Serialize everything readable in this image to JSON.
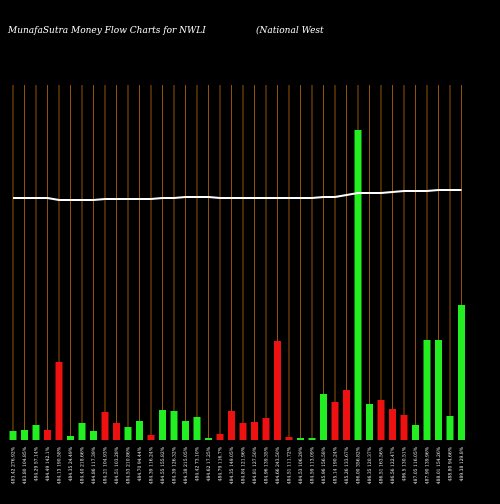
{
  "chart_data": {
    "type": "bar",
    "title": "MunafaSutra  Money Flow  Charts for NWLI",
    "subtitle": "(National West",
    "categories": [
      "483.42 276.92%",
      "483.80 104.85%",
      "484.29 57.14%",
      "484.49 142.1%",
      "484.13 190.58%",
      "484.35 24.49%",
      "484.40 218.66%",
      "484.86 117.39%",
      "484.21 104.93%",
      "484.51 103.28%",
      "484.53 210.86%",
      "484.70 94.44%",
      "484.39 116.24%",
      "484.55 155.82%",
      "484.39 126.32%",
      "484.38 215.05%",
      "484.42 73.10%",
      "484.62 17.25%",
      "484.79 116.7%",
      "484.35 149.05%",
      "484.84 121.96%",
      "484.81 127.50%",
      "484.96 139.35%",
      "484.66 243.50%",
      "484.51 111.72%",
      "484.53 106.29%",
      "484.59 113.09%",
      "485.96 156.58%",
      "485.14 190.24%",
      "485.26 133.67%",
      "486.00 356.82%",
      "486.35 120.37%",
      "486.51 163.56%",
      "486.56 122.47%",
      "486.5 130.51%",
      "487.05 116.05%",
      "487.90 139.96%",
      "488.01 154.26%",
      "488.80 94.66%",
      "489.38 129.8%"
    ],
    "series": [
      {
        "name": "money flow",
        "values": [
          9,
          10,
          15,
          10,
          78,
          4,
          17,
          9,
          28,
          17,
          13,
          19,
          5,
          30,
          29,
          19,
          23,
          2,
          6,
          29,
          17,
          18,
          22,
          99,
          3,
          2,
          2,
          46,
          38,
          50,
          310,
          36,
          40,
          31,
          25,
          15,
          100,
          100,
          24,
          135
        ],
        "colors": [
          "#22ee22",
          "#22ee22",
          "#22ee22",
          "#ee1111",
          "#ee1111",
          "#22ee22",
          "#22ee22",
          "#22ee22",
          "#ee1111",
          "#ee1111",
          "#22ee22",
          "#22ee22",
          "#ee1111",
          "#22ee22",
          "#22ee22",
          "#22ee22",
          "#22ee22",
          "#22ee22",
          "#ee1111",
          "#ee1111",
          "#ee1111",
          "#ee1111",
          "#ee1111",
          "#ee1111",
          "#ee1111",
          "#22ee22",
          "#22ee22",
          "#22ee22",
          "#ee1111",
          "#ee1111",
          "#22ee22",
          "#22ee22",
          "#ee1111",
          "#ee1111",
          "#ee1111",
          "#22ee22",
          "#22ee22",
          "#22ee22",
          "#22ee22",
          "#22ee22"
        ]
      },
      {
        "name": "price",
        "type": "line",
        "color": "#ffffff",
        "values": [
          242,
          242,
          242,
          242,
          240,
          240,
          240,
          240,
          241,
          241,
          241,
          241,
          241,
          242,
          242,
          243,
          243,
          243,
          242,
          242,
          242,
          242,
          242,
          242,
          242,
          242,
          242,
          243,
          243,
          245,
          247,
          247,
          247,
          248,
          249,
          249,
          249,
          250,
          250,
          250
        ]
      }
    ],
    "ylim": [
      0,
      360
    ],
    "grid": true,
    "grid_color": "#b8680a",
    "background": "#000000"
  }
}
